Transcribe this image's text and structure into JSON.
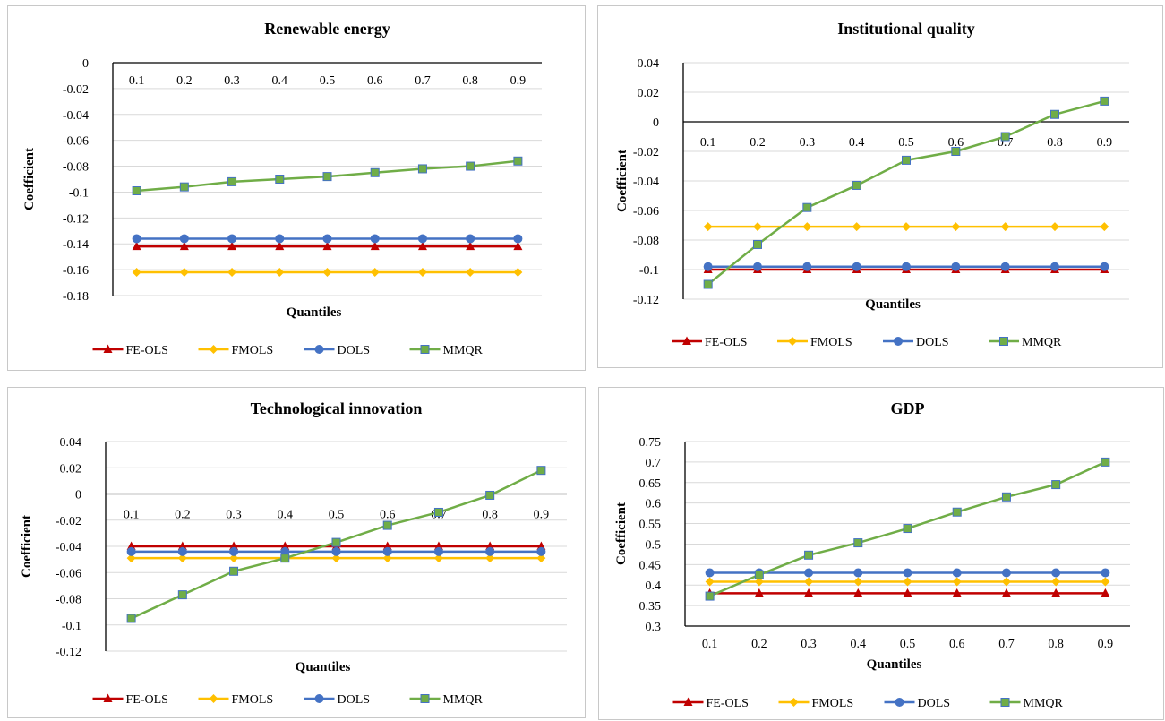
{
  "legend_labels": [
    "FE-OLS",
    "FMOLS",
    "DOLS",
    "MMQR"
  ],
  "series_colors": {
    "FE-OLS": "#c00000",
    "FMOLS": "#ffc000",
    "DOLS": "#4472c4",
    "MMQR": "#70ad47"
  },
  "series_markers": {
    "FE-OLS": "triangle",
    "FMOLS": "diamond",
    "DOLS": "circle",
    "MMQR": "square"
  },
  "chart_data": [
    {
      "type": "line",
      "title": "Renewable energy",
      "xlabel": "Quantiles",
      "ylabel": "Coefficient",
      "categories": [
        "0.1",
        "0.2",
        "0.3",
        "0.4",
        "0.5",
        "0.6",
        "0.7",
        "0.8",
        "0.9"
      ],
      "ylim": [
        -0.18,
        0
      ],
      "yticks": [
        0,
        -0.02,
        -0.04,
        -0.06,
        -0.08,
        -0.1,
        -0.12,
        -0.14,
        -0.16,
        -0.18
      ],
      "ytick_labels": [
        "0",
        "-0.02",
        "-0.04",
        "-0.06",
        "-0.08",
        "-0.1",
        "-0.12",
        "-0.14",
        "-0.16",
        "-0.18"
      ],
      "x_labels_position": "top",
      "grid": true,
      "legend": "bottom",
      "series": [
        {
          "name": "FE-OLS",
          "values": [
            -0.142,
            -0.142,
            -0.142,
            -0.142,
            -0.142,
            -0.142,
            -0.142,
            -0.142,
            -0.142
          ]
        },
        {
          "name": "FMOLS",
          "values": [
            -0.162,
            -0.162,
            -0.162,
            -0.162,
            -0.162,
            -0.162,
            -0.162,
            -0.162,
            -0.162
          ]
        },
        {
          "name": "DOLS",
          "values": [
            -0.136,
            -0.136,
            -0.136,
            -0.136,
            -0.136,
            -0.136,
            -0.136,
            -0.136,
            -0.136
          ]
        },
        {
          "name": "MMQR",
          "values": [
            -0.099,
            -0.096,
            -0.092,
            -0.09,
            -0.088,
            -0.085,
            -0.082,
            -0.08,
            -0.076
          ]
        }
      ]
    },
    {
      "type": "line",
      "title": "Institutional quality",
      "xlabel": "Quantiles",
      "ylabel": "Coefficient",
      "categories": [
        "0.1",
        "0.2",
        "0.3",
        "0.4",
        "0.5",
        "0.6",
        "0.7",
        "0.8",
        "0.9"
      ],
      "ylim": [
        -0.12,
        0.04
      ],
      "yticks": [
        0.04,
        0.02,
        0,
        -0.02,
        -0.04,
        -0.06,
        -0.08,
        -0.1,
        -0.12
      ],
      "ytick_labels": [
        "0.04",
        "0.02",
        "0",
        "-0.02",
        "-0.04",
        "-0.06",
        "-0.08",
        "-0.1",
        "-0.12"
      ],
      "x_labels_position": "zero",
      "grid": true,
      "legend": "bottom",
      "series": [
        {
          "name": "FE-OLS",
          "values": [
            -0.1,
            -0.1,
            -0.1,
            -0.1,
            -0.1,
            -0.1,
            -0.1,
            -0.1,
            -0.1
          ]
        },
        {
          "name": "FMOLS",
          "values": [
            -0.071,
            -0.071,
            -0.071,
            -0.071,
            -0.071,
            -0.071,
            -0.071,
            -0.071,
            -0.071
          ]
        },
        {
          "name": "DOLS",
          "values": [
            -0.098,
            -0.098,
            -0.098,
            -0.098,
            -0.098,
            -0.098,
            -0.098,
            -0.098,
            -0.098
          ]
        },
        {
          "name": "MMQR",
          "values": [
            -0.11,
            -0.083,
            -0.058,
            -0.043,
            -0.026,
            -0.02,
            -0.01,
            0.005,
            0.014
          ]
        }
      ]
    },
    {
      "type": "line",
      "title": "Technological innovation",
      "xlabel": "Quantiles",
      "ylabel": "Coefficient",
      "categories": [
        "0.1",
        "0.2",
        "0.3",
        "0.4",
        "0.5",
        "0.6",
        "0.7",
        "0.8",
        "0.9"
      ],
      "ylim": [
        -0.12,
        0.04
      ],
      "yticks": [
        0.04,
        0.02,
        0,
        -0.02,
        -0.04,
        -0.06,
        -0.08,
        -0.1,
        -0.12
      ],
      "ytick_labels": [
        "0.04",
        "0.02",
        "0",
        "-0.02",
        "-0.04",
        "-0.06",
        "-0.08",
        "-0.1",
        "-0.12"
      ],
      "x_labels_position": "zero",
      "grid": true,
      "legend": "bottom",
      "series": [
        {
          "name": "FE-OLS",
          "values": [
            -0.04,
            -0.04,
            -0.04,
            -0.04,
            -0.04,
            -0.04,
            -0.04,
            -0.04,
            -0.04
          ]
        },
        {
          "name": "FMOLS",
          "values": [
            -0.049,
            -0.049,
            -0.049,
            -0.049,
            -0.049,
            -0.049,
            -0.049,
            -0.049,
            -0.049
          ]
        },
        {
          "name": "DOLS",
          "values": [
            -0.044,
            -0.044,
            -0.044,
            -0.044,
            -0.044,
            -0.044,
            -0.044,
            -0.044,
            -0.044
          ]
        },
        {
          "name": "MMQR",
          "values": [
            -0.095,
            -0.077,
            -0.059,
            -0.049,
            -0.037,
            -0.024,
            -0.014,
            -0.001,
            0.018
          ]
        }
      ]
    },
    {
      "type": "line",
      "title": "GDP",
      "xlabel": "Quantiles",
      "ylabel": "Coefficient",
      "categories": [
        "0.1",
        "0.2",
        "0.3",
        "0.4",
        "0.5",
        "0.6",
        "0.7",
        "0.8",
        "0.9"
      ],
      "ylim": [
        0.3,
        0.75
      ],
      "yticks": [
        0.75,
        0.7,
        0.65,
        0.6,
        0.55,
        0.5,
        0.45,
        0.4,
        0.35,
        0.3
      ],
      "ytick_labels": [
        "0.75",
        "0.7",
        "0.65",
        "0.6",
        "0.55",
        "0.5",
        "0.45",
        "0.4",
        "0.35",
        "0.3"
      ],
      "x_labels_position": "bottom",
      "grid": true,
      "legend": "bottom",
      "series": [
        {
          "name": "FE-OLS",
          "values": [
            0.38,
            0.38,
            0.38,
            0.38,
            0.38,
            0.38,
            0.38,
            0.38,
            0.38
          ]
        },
        {
          "name": "FMOLS",
          "values": [
            0.408,
            0.408,
            0.408,
            0.408,
            0.408,
            0.408,
            0.408,
            0.408,
            0.408
          ]
        },
        {
          "name": "DOLS",
          "values": [
            0.43,
            0.43,
            0.43,
            0.43,
            0.43,
            0.43,
            0.43,
            0.43,
            0.43
          ]
        },
        {
          "name": "MMQR",
          "values": [
            0.373,
            0.425,
            0.473,
            0.503,
            0.538,
            0.578,
            0.615,
            0.645,
            0.7
          ]
        }
      ]
    }
  ]
}
